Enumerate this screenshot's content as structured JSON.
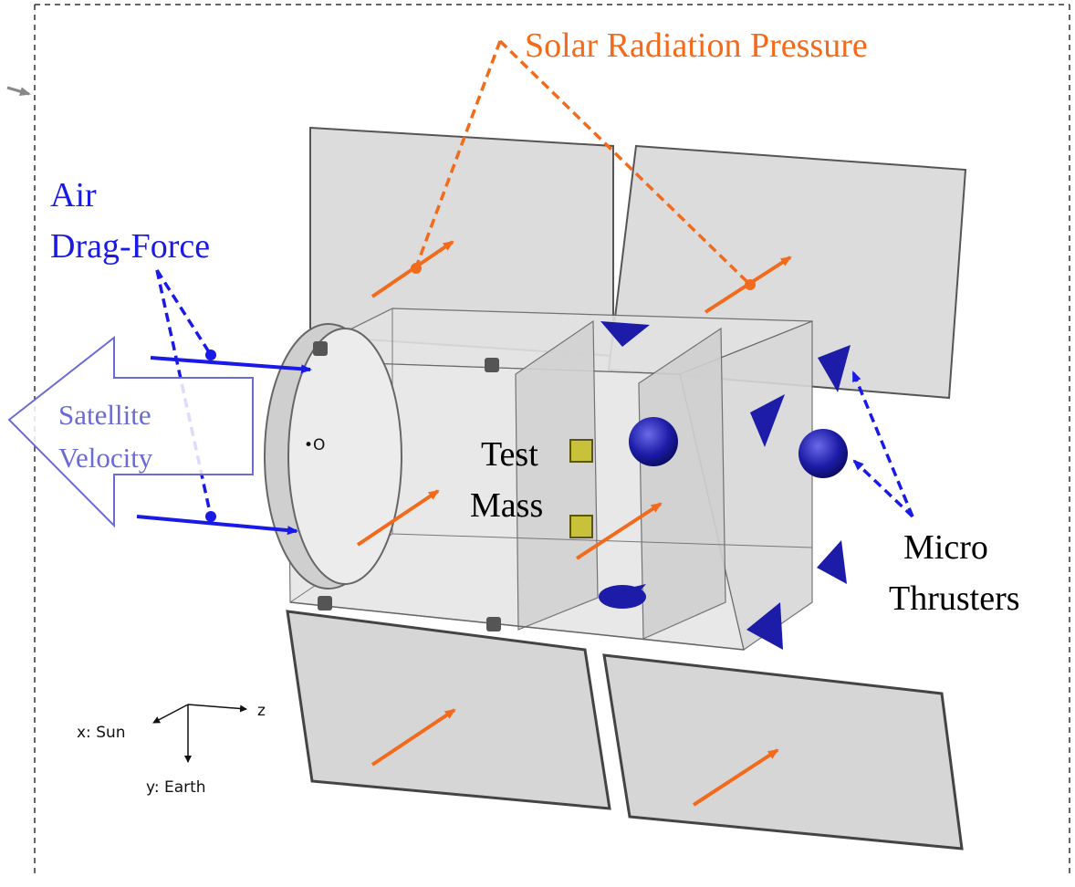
{
  "labels": {
    "solar_radiation_pressure": "Solar Radiation Pressure",
    "air": "Air",
    "drag_force": "Drag-Force",
    "satellite": "Satellite",
    "velocity": "Velocity",
    "test": "Test",
    "mass": "Mass",
    "micro": "Micro",
    "thrusters": "Thrusters",
    "origin_marker": "•O"
  },
  "axes": {
    "x_label": "x: Sun",
    "y_label": "y: Earth",
    "z_label": "z"
  },
  "colors": {
    "solar": "#f26b1d",
    "drag": "#1a1ae6",
    "velocity_arrow": "#6b6bd6",
    "thruster": "#1c1ca8",
    "panel_fill": "#d9d9d9",
    "panel_edge": "#555555",
    "test_mass": "#c8c23a",
    "border": "#333333"
  }
}
